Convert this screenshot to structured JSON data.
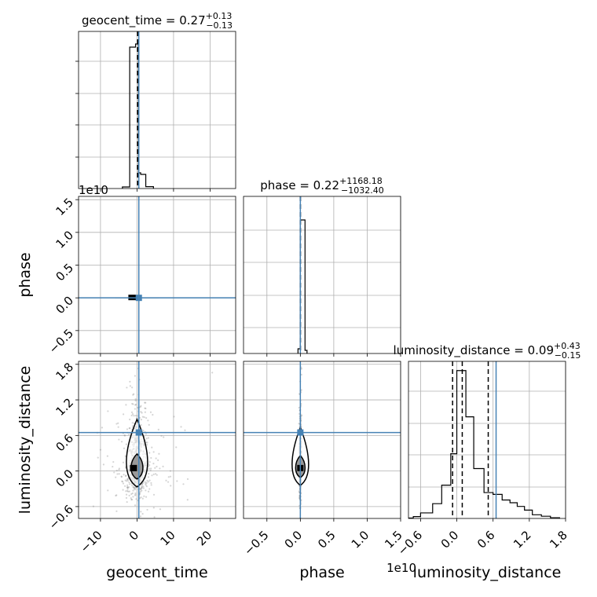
{
  "chart_data": {
    "type": "corner",
    "parameters": [
      "geocent_time",
      "phase",
      "luminosity_distance"
    ],
    "colors": {
      "truth": "#4682b4",
      "hist": "#000000",
      "points": "#888888",
      "grid": "#b0b0b0"
    },
    "offset_labels": {
      "phase_x": "1e10",
      "phase_y": "1e10"
    },
    "truths": {
      "geocent_time": 0.5,
      "phase": 0,
      "luminosity_distance": 0.65
    },
    "grid": true,
    "panels": {
      "geocent_time_hist": {
        "title": {
          "name": "geocent_time",
          "value": "0.27",
          "upper": "+0.13",
          "lower": "−0.13"
        },
        "xlim": [
          -16,
          27
        ],
        "quantiles": [
          0.15,
          0.27,
          0.4
        ],
        "truth": 0.5,
        "bins": [
          {
            "x0": -4.0,
            "x1": -2.0,
            "h": 0.01
          },
          {
            "x0": -2.0,
            "x1": -0.4,
            "h": 0.9
          },
          {
            "x0": -0.4,
            "x1": 0.4,
            "h": 0.92
          },
          {
            "x0": 0.4,
            "x1": 1.0,
            "h": 0.1
          },
          {
            "x0": 1.0,
            "x1": 2.4,
            "h": 0.09
          },
          {
            "x0": 2.4,
            "x1": 4.5,
            "h": 0.012
          }
        ]
      },
      "phase_hist": {
        "title": {
          "name": "phase",
          "value": "0.22",
          "upper": "+1168.18",
          "lower": "−1032.40"
        },
        "xlim": [
          -0.85,
          1.5
        ],
        "quantiles": [
          -0.001,
          0.0,
          0.001
        ],
        "truth": 0.0,
        "bins": [
          {
            "x0": -0.035,
            "x1": 0.0,
            "h": 0.03
          },
          {
            "x0": 0.0,
            "x1": 0.07,
            "h": 0.85
          },
          {
            "x0": 0.07,
            "x1": 0.1,
            "h": 0.02
          }
        ]
      },
      "luminosity_distance_hist": {
        "title": {
          "name": "luminosity_distance",
          "value": "0.09",
          "upper": "+0.43",
          "lower": "−0.15"
        },
        "xlim": [
          -0.8,
          1.8
        ],
        "quantiles": [
          -0.07,
          0.09,
          0.52
        ],
        "truth": 0.65,
        "bins": [
          {
            "x0": -0.8,
            "x1": -0.72,
            "h": 0.002
          },
          {
            "x0": -0.72,
            "x1": -0.6,
            "h": 0.01
          },
          {
            "x0": -0.6,
            "x1": -0.4,
            "h": 0.03
          },
          {
            "x0": -0.4,
            "x1": -0.25,
            "h": 0.08
          },
          {
            "x0": -0.25,
            "x1": -0.1,
            "h": 0.18
          },
          {
            "x0": -0.1,
            "x1": 0.0,
            "h": 0.35
          },
          {
            "x0": 0.0,
            "x1": 0.15,
            "h": 0.8
          },
          {
            "x0": 0.15,
            "x1": 0.28,
            "h": 0.55
          },
          {
            "x0": 0.28,
            "x1": 0.45,
            "h": 0.27
          },
          {
            "x0": 0.45,
            "x1": 0.6,
            "h": 0.14
          },
          {
            "x0": 0.6,
            "x1": 0.75,
            "h": 0.13
          },
          {
            "x0": 0.75,
            "x1": 0.88,
            "h": 0.1
          },
          {
            "x0": 0.88,
            "x1": 1.0,
            "h": 0.085
          },
          {
            "x0": 1.0,
            "x1": 1.12,
            "h": 0.065
          },
          {
            "x0": 1.12,
            "x1": 1.25,
            "h": 0.045
          },
          {
            "x0": 1.25,
            "x1": 1.4,
            "h": 0.02
          },
          {
            "x0": 1.4,
            "x1": 1.55,
            "h": 0.012
          },
          {
            "x0": 1.55,
            "x1": 1.7,
            "h": 0.004
          }
        ]
      },
      "phase_vs_geocent_time": {
        "xlim": [
          -16,
          27
        ],
        "ylim": [
          -0.85,
          1.55
        ]
      },
      "luminosity_distance_vs_geocent_time": {
        "xlim": [
          -16,
          27
        ],
        "ylim": [
          -0.8,
          1.85
        ]
      },
      "luminosity_distance_vs_phase": {
        "xlim": [
          -0.85,
          1.5
        ],
        "ylim": [
          -0.8,
          1.85
        ]
      }
    },
    "axes": {
      "geocent_time": {
        "label": "geocent_time",
        "ticks": [
          -10,
          0,
          10,
          20
        ],
        "tick_labels": [
          "−10",
          "0",
          "10",
          "20"
        ]
      },
      "phase_x": {
        "label": "phase",
        "ticks": [
          -0.5,
          0.0,
          0.5,
          1.0,
          1.5
        ],
        "tick_labels": [
          "−0.5",
          "0.0",
          "0.5",
          "1.0",
          "1.5"
        ]
      },
      "phase_y": {
        "label": "phase",
        "ticks": [
          -0.5,
          0.0,
          0.5,
          1.0,
          1.5
        ],
        "tick_labels": [
          "−0.5",
          "0.0",
          "0.5",
          "1.0",
          "1.5"
        ]
      },
      "luminosity_distance_x": {
        "label": "luminosity_distance",
        "ticks": [
          -0.6,
          0.0,
          0.6,
          1.2,
          1.8
        ],
        "tick_labels": [
          "−0.6",
          "0.0",
          "0.6",
          "1.2",
          "1.8"
        ]
      },
      "luminosity_distance_y": {
        "label": "luminosity_distance",
        "ticks": [
          -0.6,
          0.0,
          0.6,
          1.2,
          1.8
        ],
        "tick_labels": [
          "−0.6",
          "0.0",
          "0.6",
          "1.2",
          "1.8"
        ]
      }
    }
  }
}
